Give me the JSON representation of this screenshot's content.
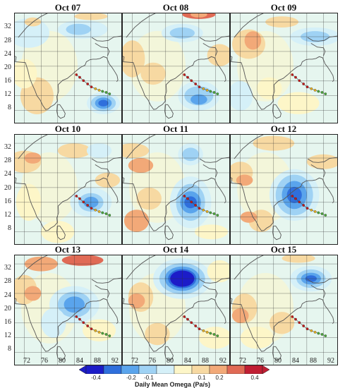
{
  "panels": [
    {
      "title": "Oct 07"
    },
    {
      "title": "Oct 08"
    },
    {
      "title": "Oct 09"
    },
    {
      "title": "Oct 10"
    },
    {
      "title": "Oct 11"
    },
    {
      "title": "Oct 12"
    },
    {
      "title": "Oct 13"
    },
    {
      "title": "Oct 14"
    },
    {
      "title": "Oct 15"
    }
  ],
  "y_ticks": [
    "32",
    "28",
    "24",
    "20",
    "16",
    "12",
    "8"
  ],
  "x_ticks": [
    "72",
    "76",
    "80",
    "84",
    "88",
    "92"
  ],
  "colorbar": {
    "title": "Daily Mean Omega (Pa/s)",
    "ticks": [
      "-0.4",
      "-0.2",
      "-0.1",
      "0.1",
      "0.2",
      "0.4"
    ],
    "colors": [
      "#1c1cc8",
      "#2f6fdc",
      "#5aa4ec",
      "#9fd2f4",
      "#d5f0f8",
      "#fdf6c8",
      "#f7d9a2",
      "#f2a978",
      "#e06a55",
      "#c01e33"
    ]
  },
  "chart_data": {
    "type": "heatmap",
    "variable": "Daily Mean Omega (Pa/s)",
    "lat_ticks": [
      32,
      28,
      24,
      20,
      16,
      12,
      8
    ],
    "lon_ticks": [
      72,
      76,
      80,
      84,
      88,
      92
    ],
    "levels": [
      -0.4,
      -0.2,
      -0.1,
      0.1,
      0.2,
      0.4
    ],
    "panels": [
      "Oct 07",
      "Oct 08",
      "Oct 09",
      "Oct 10",
      "Oct 11",
      "Oct 12",
      "Oct 13",
      "Oct 14",
      "Oct 15"
    ],
    "track": [
      [
        84.5,
        17.7
      ],
      [
        85.3,
        17.0
      ],
      [
        86.2,
        16.1
      ],
      [
        87.2,
        15.2
      ],
      [
        88.1,
        14.4
      ],
      [
        89.1,
        13.9
      ],
      [
        90.0,
        13.5
      ],
      [
        90.8,
        13.2
      ],
      [
        91.7,
        12.9
      ],
      [
        92.5,
        12.5
      ]
    ]
  }
}
